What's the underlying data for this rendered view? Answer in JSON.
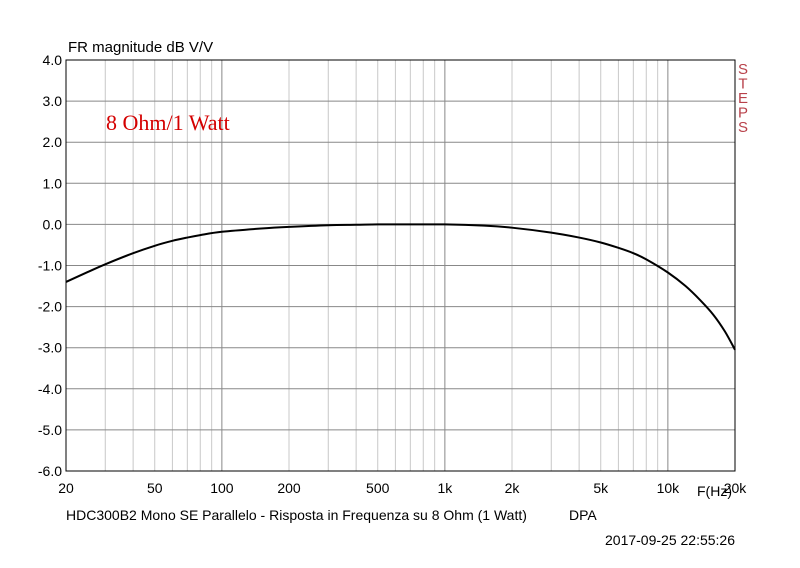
{
  "chart_data": {
    "type": "line",
    "title": "FR magnitude dB V/V",
    "xlabel": "F(Hz)",
    "ylabel": "",
    "x_scale": "log",
    "xlim": [
      20,
      20000
    ],
    "ylim": [
      -6,
      4
    ],
    "grid": true,
    "x_ticks": [
      {
        "value": 20,
        "label": "20"
      },
      {
        "value": 50,
        "label": "50"
      },
      {
        "value": 100,
        "label": "100"
      },
      {
        "value": 200,
        "label": "200"
      },
      {
        "value": 500,
        "label": "500"
      },
      {
        "value": 1000,
        "label": "1k"
      },
      {
        "value": 2000,
        "label": "2k"
      },
      {
        "value": 5000,
        "label": "5k"
      },
      {
        "value": 10000,
        "label": "10k"
      },
      {
        "value": 20000,
        "label": "20k"
      }
    ],
    "y_ticks": [
      {
        "value": 4,
        "label": "4.0"
      },
      {
        "value": 3,
        "label": "3.0"
      },
      {
        "value": 2,
        "label": "2.0"
      },
      {
        "value": 1,
        "label": "1.0"
      },
      {
        "value": 0,
        "label": "0.0"
      },
      {
        "value": -1,
        "label": "-1.0"
      },
      {
        "value": -2,
        "label": "-2.0"
      },
      {
        "value": -3,
        "label": "-3.0"
      },
      {
        "value": -4,
        "label": "-4.0"
      },
      {
        "value": -5,
        "label": "-5.0"
      },
      {
        "value": -6,
        "label": "-6.0"
      }
    ],
    "series": [
      {
        "color": "#000000",
        "x": [
          20,
          25,
          30,
          40,
          50,
          60,
          70,
          80,
          100,
          150,
          200,
          300,
          400,
          500,
          700,
          1000,
          1500,
          2000,
          3000,
          4000,
          5000,
          6000,
          7000,
          8000,
          10000,
          12000,
          14000,
          16000,
          18000,
          20000
        ],
        "y": [
          -1.4,
          -1.16,
          -0.97,
          -0.7,
          -0.52,
          -0.4,
          -0.32,
          -0.26,
          -0.18,
          -0.1,
          -0.06,
          -0.02,
          -0.01,
          0.0,
          0.0,
          0.0,
          -0.03,
          -0.08,
          -0.2,
          -0.32,
          -0.44,
          -0.57,
          -0.7,
          -0.85,
          -1.17,
          -1.5,
          -1.85,
          -2.2,
          -2.6,
          -3.05
        ]
      }
    ],
    "annotation": "8 Ohm/1 Watt",
    "side_label": "STEPS"
  },
  "footer": {
    "caption": "HDC300B2 Mono SE Parallelo - Risposta in Frequenza su 8 Ohm (1 Watt)",
    "tag": "DPA",
    "timestamp": "2017-09-25 22:55:26"
  },
  "colors": {
    "curve": "#000000",
    "grid_major": "#888888",
    "grid_minor": "#c8c8c8",
    "annotation": "#d40000",
    "side_label": "#b8414a"
  }
}
